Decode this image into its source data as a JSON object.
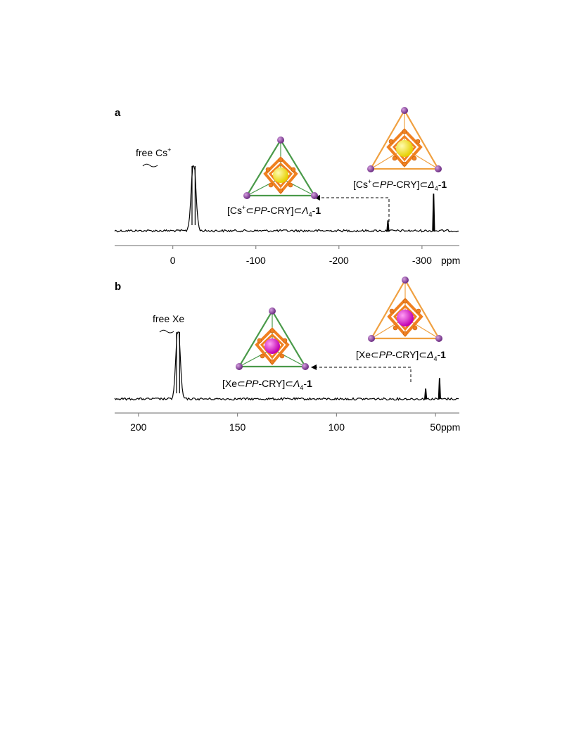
{
  "colors": {
    "spectrum": "#000000",
    "axis": "#888888",
    "lambda_cage_edge": "#4a9a4a",
    "delta_cage_edge": "#f0a040",
    "cage_core": "#f08020",
    "vertex": "#8e3fa0",
    "cs_guest": "#f5e61a",
    "xe_guest": "#e020d0"
  },
  "chart_data": [
    {
      "panel": "a",
      "type": "line",
      "unit": "ppm",
      "xlim": [
        70,
        -345
      ],
      "x_ticks": [
        0,
        -100,
        -200,
        -300
      ],
      "tick_labels": [
        "0",
        "-100",
        "-200",
        "-300"
      ],
      "grid": false,
      "peaks": [
        {
          "x": -25.0,
          "relative_height": "off-scale (truncated)",
          "label": "free Cs",
          "label_sup": "+"
        },
        {
          "x": -259.0,
          "relative_height": 0.15
        },
        {
          "x": -314.0,
          "relative_height": 0.55
        }
      ],
      "annotations": {
        "lambda_label": {
          "pre": "[Cs",
          "sup": "+",
          "mid": "⊂",
          "it1": "PP",
          "mid2": "-CRY]⊂",
          "it2": "Λ",
          "sub": "4",
          "dash": "-",
          "bold": "1"
        },
        "delta_label": {
          "pre": "[Cs",
          "sup": "+",
          "mid": "⊂",
          "it1": "PP",
          "mid2": "-CRY]⊂",
          "it2": "Δ",
          "sub": "4",
          "dash": "-",
          "bold": "1"
        }
      }
    },
    {
      "panel": "b",
      "type": "line",
      "unit": "ppm",
      "xlim": [
        212,
        38
      ],
      "x_ticks": [
        200,
        150,
        100,
        50
      ],
      "tick_labels": [
        "200",
        "150",
        "100",
        "50"
      ],
      "grid": false,
      "peaks": [
        {
          "x": 180.0,
          "relative_height": "off-scale (truncated)",
          "label": "free Xe"
        },
        {
          "x": 55.0,
          "relative_height": 0.22
        },
        {
          "x": 48.0,
          "relative_height": 0.45
        }
      ],
      "annotations": {
        "lambda_label": {
          "pre": "[Xe",
          "mid": "⊂",
          "it1": "PP",
          "mid2": "-CRY]⊂",
          "it2": "Λ",
          "sub": "4",
          "dash": "-",
          "bold": "1"
        },
        "delta_label": {
          "pre": "[Xe",
          "mid": "⊂",
          "it1": "PP",
          "mid2": "-CRY]⊂",
          "it2": "Δ",
          "sub": "4",
          "dash": "-",
          "bold": "1"
        }
      }
    }
  ]
}
